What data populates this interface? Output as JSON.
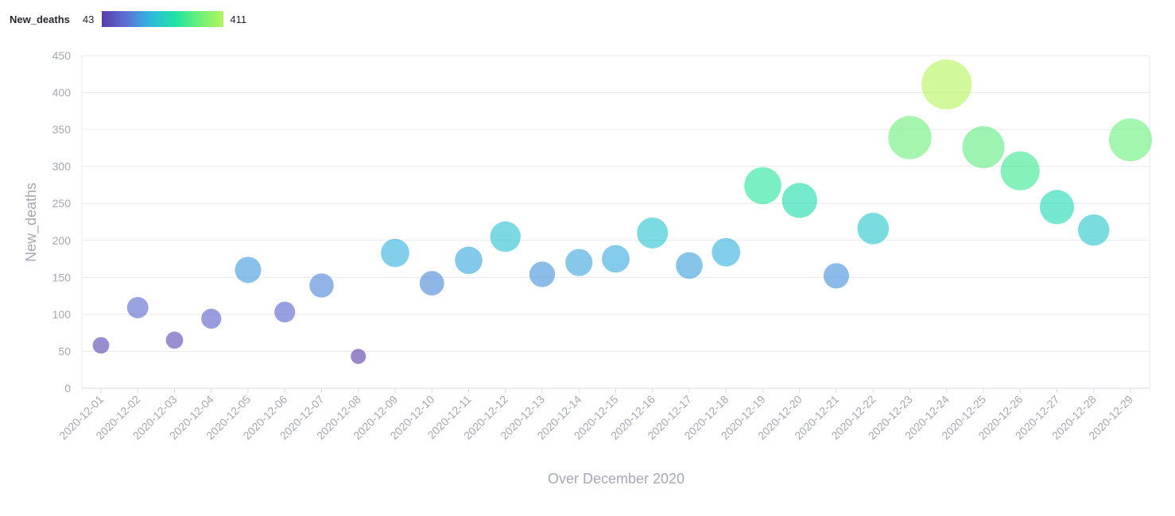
{
  "legend": {
    "title": "New_deaths",
    "min_label": "43",
    "max_label": "411",
    "gradient": [
      "#5a3da8",
      "#5b6fd6",
      "#2fb8e0",
      "#1ee3a3",
      "#6cf07a",
      "#b4f55c"
    ]
  },
  "chart_data": {
    "type": "scatter",
    "title": "",
    "xlabel": "Over December 2020",
    "ylabel": "New_deaths",
    "ylim": [
      0,
      450
    ],
    "yticks": [
      0,
      50,
      100,
      150,
      200,
      250,
      300,
      350,
      400,
      450
    ],
    "grid": true,
    "size_encoding": "New_deaths",
    "color_encoding": "New_deaths",
    "x": [
      "2020-12-01",
      "2020-12-02",
      "2020-12-03",
      "2020-12-04",
      "2020-12-05",
      "2020-12-06",
      "2020-12-07",
      "2020-12-08",
      "2020-12-09",
      "2020-12-10",
      "2020-12-11",
      "2020-12-12",
      "2020-12-13",
      "2020-12-14",
      "2020-12-15",
      "2020-12-16",
      "2020-12-17",
      "2020-12-18",
      "2020-12-19",
      "2020-12-20",
      "2020-12-21",
      "2020-12-22",
      "2020-12-23",
      "2020-12-24",
      "2020-12-25",
      "2020-12-26",
      "2020-12-27",
      "2020-12-28",
      "2020-12-29"
    ],
    "values": [
      58,
      109,
      65,
      94,
      160,
      103,
      139,
      43,
      183,
      142,
      173,
      205,
      154,
      170,
      175,
      210,
      166,
      184,
      274,
      254,
      152,
      216,
      339,
      411,
      326,
      294,
      245,
      214,
      336
    ]
  }
}
